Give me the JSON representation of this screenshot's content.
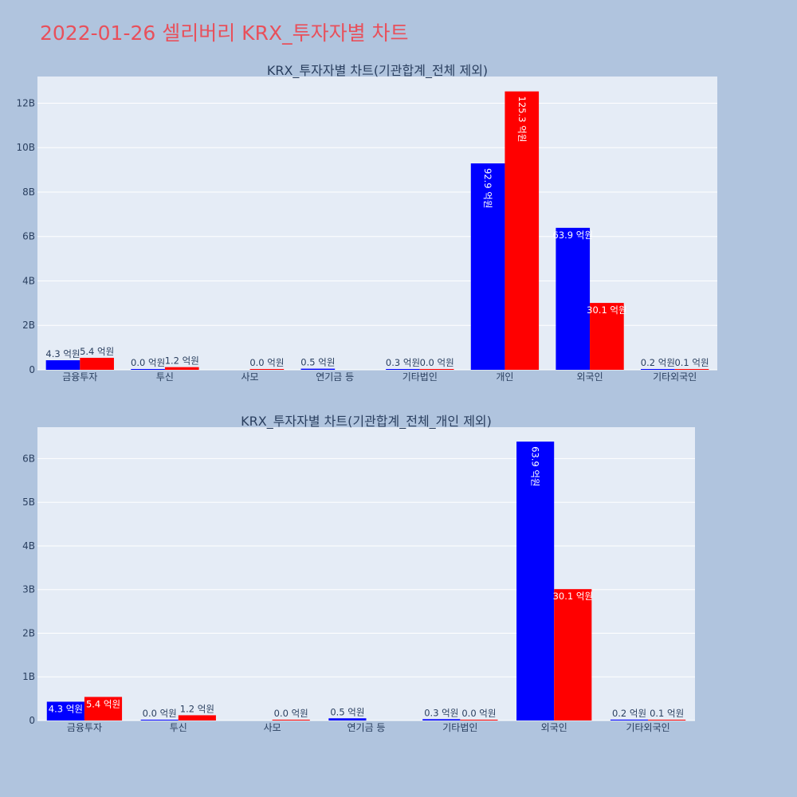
{
  "page": {
    "title": "2022-01-26 셀리버리 KRX_투자자별 차트"
  },
  "colors": {
    "buy": "#0000ff",
    "sell": "#ff0000",
    "title": "#e8505b",
    "background": "#b0c4de",
    "plot_background": "#e5ecf6"
  },
  "chart_data": [
    {
      "type": "bar",
      "title": "KRX_투자자별 차트(기관합계_전체 제외)",
      "categories": [
        "금융투자",
        "투신",
        "사모",
        "연기금 등",
        "기타법인",
        "개인",
        "외국인",
        "기타외국인"
      ],
      "series": [
        {
          "color": "#0000ff",
          "values": [
            430000000,
            0,
            null,
            50000000,
            30000000,
            9290000000,
            6390000000,
            20000000
          ],
          "labels": [
            "4.3 억원",
            "0.0 억원",
            null,
            "0.5 억원",
            "0.3 억원",
            "92.9 억원",
            "63.9 억원",
            "0.2 억원"
          ]
        },
        {
          "color": "#ff0000",
          "values": [
            540000000,
            120000000,
            0,
            null,
            0,
            12530000000,
            3010000000,
            10000000
          ],
          "labels": [
            "5.4 억원",
            "1.2 억원",
            "0.0 억원",
            null,
            "0.0 억원",
            "125.3 억원",
            "30.1 억원",
            "0.1 억원"
          ]
        }
      ],
      "yticks": [
        0,
        2000000000,
        4000000000,
        6000000000,
        8000000000,
        10000000000,
        12000000000
      ],
      "ytick_labels": [
        "0",
        "2B",
        "4B",
        "6B",
        "8B",
        "10B",
        "12B"
      ],
      "ylim": [
        0,
        13200000000
      ],
      "grid": true
    },
    {
      "type": "bar",
      "title": "KRX_투자자별 차트(기관합계_전체_개인 제외)",
      "categories": [
        "금융투자",
        "투신",
        "사모",
        "연기금 등",
        "기타법인",
        "외국인",
        "기타외국인"
      ],
      "series": [
        {
          "color": "#0000ff",
          "values": [
            430000000,
            0,
            null,
            50000000,
            30000000,
            6390000000,
            20000000
          ],
          "labels": [
            "4.3 억원",
            "0.0 억원",
            null,
            "0.5 억원",
            "0.3 억원",
            "63.9 억원",
            "0.2 억원"
          ]
        },
        {
          "color": "#ff0000",
          "values": [
            540000000,
            120000000,
            0,
            null,
            0,
            3010000000,
            10000000
          ],
          "labels": [
            "5.4 억원",
            "1.2 억원",
            "0.0 억원",
            null,
            "0.0 억원",
            "30.1 억원",
            "0.1 억원"
          ]
        }
      ],
      "yticks": [
        0,
        1000000000,
        2000000000,
        3000000000,
        4000000000,
        5000000000,
        6000000000
      ],
      "ytick_labels": [
        "0",
        "1B",
        "2B",
        "3B",
        "4B",
        "5B",
        "6B"
      ],
      "ylim": [
        0,
        6720000000
      ],
      "grid": true
    }
  ]
}
